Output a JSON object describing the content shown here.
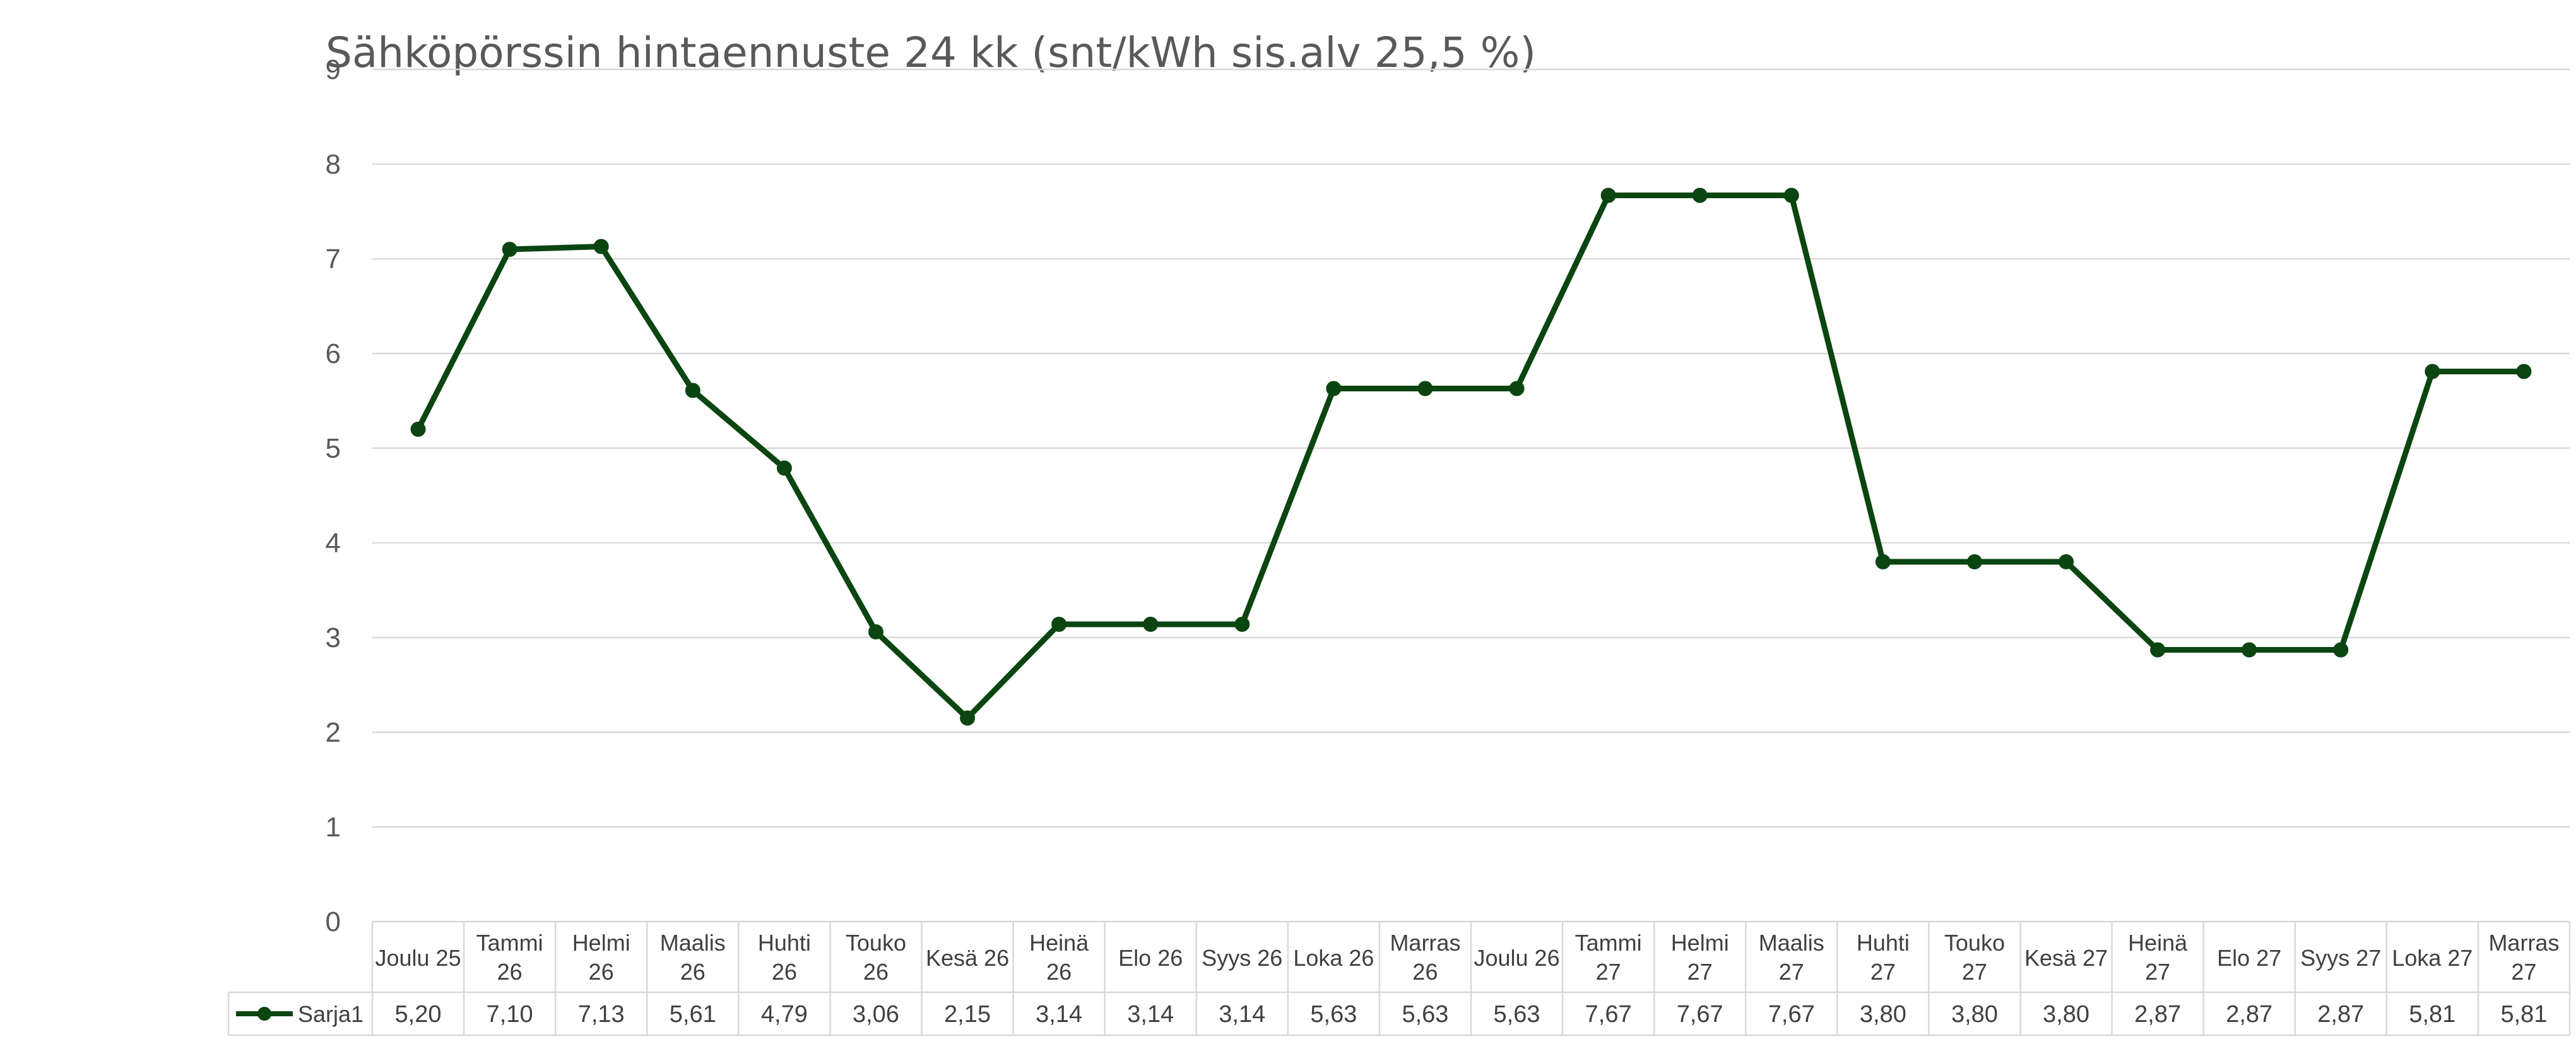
{
  "chart_data": {
    "type": "line",
    "title": "Sähköpörssin hintaennuste 24 kk (snt/kWh sis.alv 25,5 %)",
    "xlabel": "",
    "ylabel": "",
    "ylim": [
      0,
      9
    ],
    "yticks": [
      "0",
      "1",
      "2",
      "3",
      "4",
      "5",
      "6",
      "7",
      "8",
      "9"
    ],
    "grid": true,
    "legend": "data-table-left",
    "line_color": "#0b4511",
    "categories": [
      [
        "Joulu 25"
      ],
      [
        "Tammi",
        "26"
      ],
      [
        "Helmi",
        "26"
      ],
      [
        "Maalis",
        "26"
      ],
      [
        "Huhti",
        "26"
      ],
      [
        "Touko",
        "26"
      ],
      [
        "Kesä 26"
      ],
      [
        "Heinä",
        "26"
      ],
      [
        "Elo 26"
      ],
      [
        "Syys 26"
      ],
      [
        "Loka 26"
      ],
      [
        "Marras",
        "26"
      ],
      [
        "Joulu 26"
      ],
      [
        "Tammi",
        "27"
      ],
      [
        "Helmi",
        "27"
      ],
      [
        "Maalis",
        "27"
      ],
      [
        "Huhti",
        "27"
      ],
      [
        "Touko",
        "27"
      ],
      [
        "Kesä 27"
      ],
      [
        "Heinä",
        "27"
      ],
      [
        "Elo 27"
      ],
      [
        "Syys 27"
      ],
      [
        "Loka 27"
      ],
      [
        "Marras",
        "27"
      ]
    ],
    "series": [
      {
        "name": "Sarja1",
        "values": [
          5.2,
          7.1,
          7.13,
          5.61,
          4.79,
          3.06,
          2.15,
          3.14,
          3.14,
          3.14,
          5.63,
          5.63,
          5.63,
          7.67,
          7.67,
          7.67,
          3.8,
          3.8,
          3.8,
          2.87,
          2.87,
          2.87,
          5.81,
          5.81
        ],
        "value_labels": [
          "5,20",
          "7,10",
          "7,13",
          "5,61",
          "4,79",
          "3,06",
          "2,15",
          "3,14",
          "3,14",
          "3,14",
          "5,63",
          "5,63",
          "5,63",
          "7,67",
          "7,67",
          "7,67",
          "3,80",
          "3,80",
          "3,80",
          "2,87",
          "2,87",
          "2,87",
          "5,81",
          "5,81"
        ]
      }
    ]
  }
}
